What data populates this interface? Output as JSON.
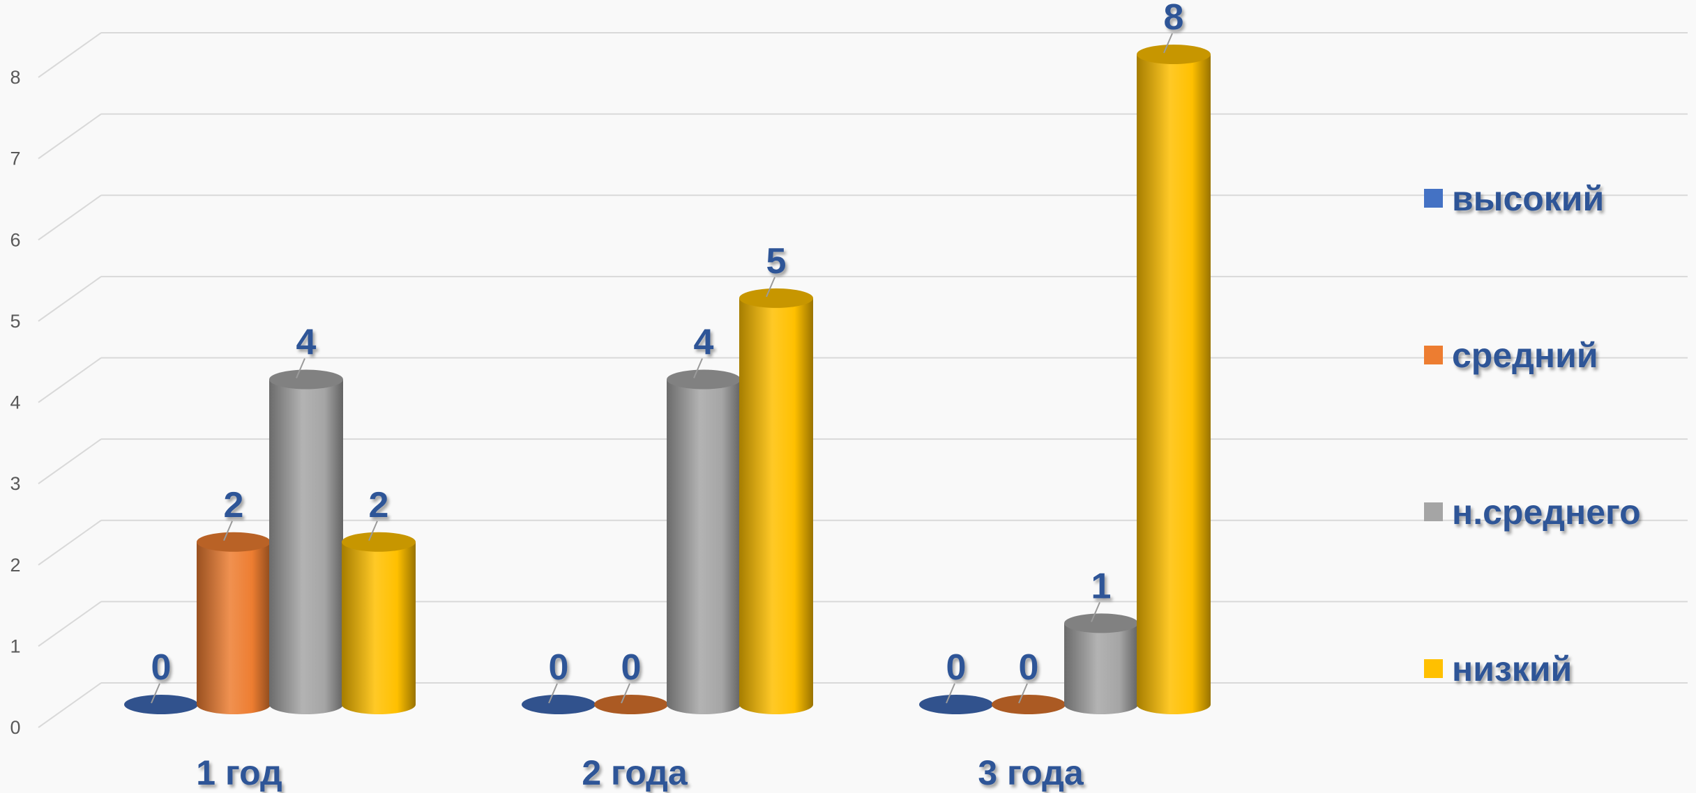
{
  "chart_data": {
    "type": "bar",
    "style": "3d-cylinder",
    "categories": [
      "1 год",
      "2 года",
      "3 года"
    ],
    "series": [
      {
        "name": "высокий",
        "values": [
          0,
          0,
          0
        ],
        "color": "#4472C4"
      },
      {
        "name": "средний",
        "values": [
          2,
          0,
          0
        ],
        "color": "#ED7D31"
      },
      {
        "name": "н.среднего",
        "values": [
          4,
          4,
          1
        ],
        "color": "#A5A5A5"
      },
      {
        "name": "низкий",
        "values": [
          2,
          5,
          8
        ],
        "color": "#FFC000"
      }
    ],
    "ylim": [
      0,
      8
    ],
    "yticks": [
      "0",
      "1",
      "2",
      "3",
      "4",
      "5",
      "6",
      "7",
      "8"
    ],
    "grid": true,
    "legend_position": "right",
    "data_labels": true,
    "label_color": "#2F5597",
    "background": "#F9F9F9"
  }
}
